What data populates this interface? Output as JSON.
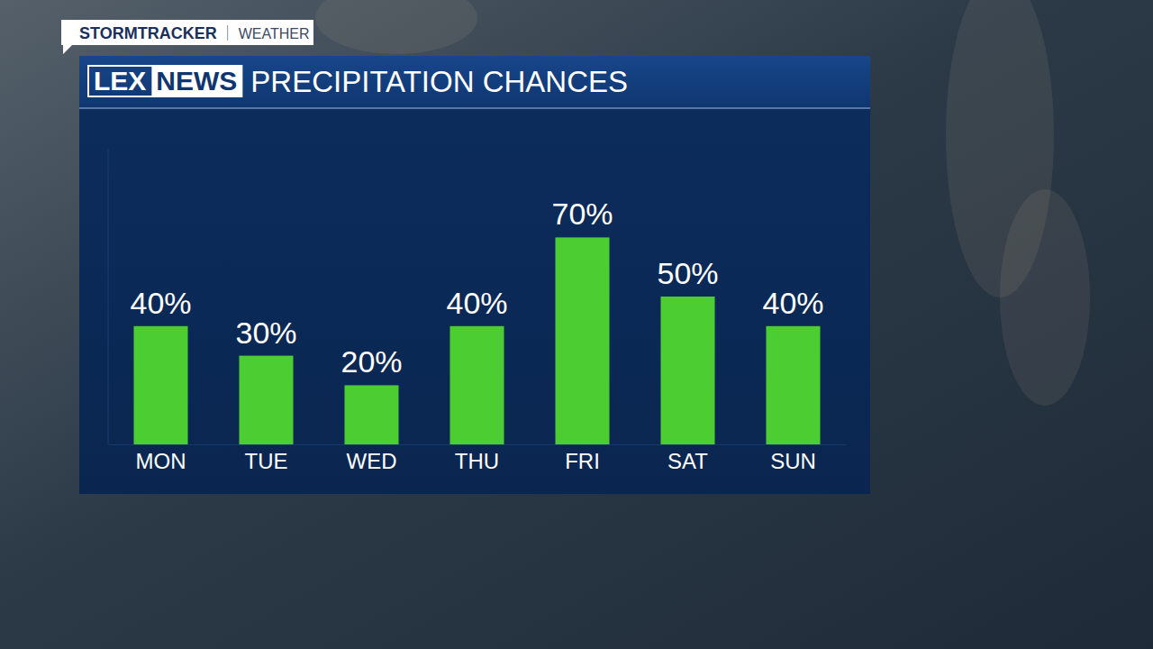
{
  "chart_data": {
    "type": "bar",
    "title": "PRECIPITATION CHANCES",
    "categories": [
      "MON",
      "TUE",
      "WED",
      "THU",
      "FRI",
      "SAT",
      "SUN"
    ],
    "values": [
      40,
      30,
      20,
      40,
      70,
      50,
      40
    ],
    "value_labels": [
      "40%",
      "30%",
      "20%",
      "40%",
      "70%",
      "50%",
      "40%"
    ],
    "color": "#4ccd32",
    "ylim": [
      0,
      100
    ],
    "data_labels": true,
    "tick_labels": "x",
    "grid": false
  },
  "branding": {
    "tag": "STORMTRACKER",
    "tag_section": "WEATHER",
    "logo_left": "LEX",
    "logo_right": "NEWS"
  }
}
